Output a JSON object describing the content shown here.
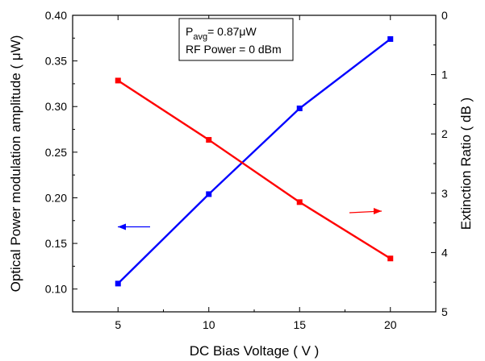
{
  "chart_data": {
    "type": "line",
    "x_axis": {
      "label": "DC Bias Voltage ( V )",
      "range": [
        2.5,
        22.5
      ],
      "ticks": [
        5,
        10,
        15,
        20
      ]
    },
    "y_left_axis": {
      "label": "Optical Power modulation amplitude ( μW)",
      "range": [
        0.075,
        0.4
      ],
      "ticks": [
        0.1,
        0.15,
        0.2,
        0.25,
        0.3,
        0.35,
        0.4
      ],
      "tick_labels": [
        "0.10",
        "0.15",
        "0.20",
        "0.25",
        "0.30",
        "0.35",
        "0.40"
      ]
    },
    "y_right_axis": {
      "label": "Extinction Ratio ( dB )",
      "range": [
        5,
        0
      ],
      "ticks": [
        0,
        1,
        2,
        3,
        4,
        5
      ],
      "tick_labels": [
        "0",
        "1",
        "2",
        "3",
        "4",
        "5"
      ],
      "inverted": true
    },
    "series": [
      {
        "axis": "left",
        "color": "#0000ff",
        "marker": "square",
        "x": [
          5,
          10,
          15,
          20
        ],
        "y": [
          0.106,
          0.204,
          0.298,
          0.374
        ]
      },
      {
        "axis": "right",
        "color": "#ff0000",
        "marker": "square",
        "x": [
          5,
          10,
          15,
          20
        ],
        "y": [
          1.1,
          2.1,
          3.15,
          4.1
        ]
      }
    ],
    "annotations": {
      "line1_prefix": "P",
      "line1_sub": "avg",
      "line1_suffix": "= 0.87μW",
      "line2": "RF Power = 0 dBm"
    },
    "arrows": [
      {
        "series_color": "#0000ff",
        "direction": "left"
      },
      {
        "series_color": "#ff0000",
        "direction": "right"
      }
    ],
    "grid": false
  }
}
